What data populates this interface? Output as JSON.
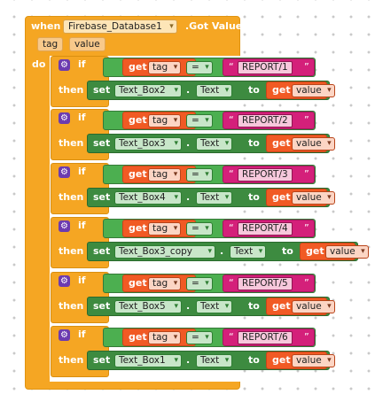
{
  "event": {
    "when_label": "when",
    "component": "Firebase_Database1",
    "event_name": ".Got Value",
    "params": [
      "tag",
      "value"
    ],
    "do_label": "do"
  },
  "branch_labels": {
    "if": "if",
    "then": "then"
  },
  "block_labels": {
    "get": "get",
    "set": "set",
    "to": "to",
    "dot": ".",
    "quote_open": "“",
    "quote_close": "”"
  },
  "branches": [
    {
      "compare_var": "tag",
      "operator": "=",
      "text_value": "REPORT/1",
      "target": "Text_Box2",
      "property": "Text",
      "get_var": "value"
    },
    {
      "compare_var": "tag",
      "operator": "=",
      "text_value": "REPORT/2",
      "target": "Text_Box3",
      "property": "Text",
      "get_var": "value"
    },
    {
      "compare_var": "tag",
      "operator": "=",
      "text_value": "REPORT/3",
      "target": "Text_Box4",
      "property": "Text",
      "get_var": "value"
    },
    {
      "compare_var": "tag",
      "operator": "=",
      "text_value": "REPORT/4",
      "target": "Text_Box3_copy",
      "property": "Text",
      "get_var": "value"
    },
    {
      "compare_var": "tag",
      "operator": "=",
      "text_value": "REPORT/5",
      "target": "Text_Box5",
      "property": "Text",
      "get_var": "value"
    },
    {
      "compare_var": "tag",
      "operator": "=",
      "text_value": "REPORT/6",
      "target": "Text_Box1",
      "property": "Text",
      "get_var": "value"
    }
  ],
  "colors": {
    "event_block": "#f5a623",
    "compare_block": "#4caf50",
    "set_block": "#3d8b40",
    "get_block": "#f15a24",
    "text_block": "#d4207a",
    "mutator_gear": "#6c3bb0"
  }
}
